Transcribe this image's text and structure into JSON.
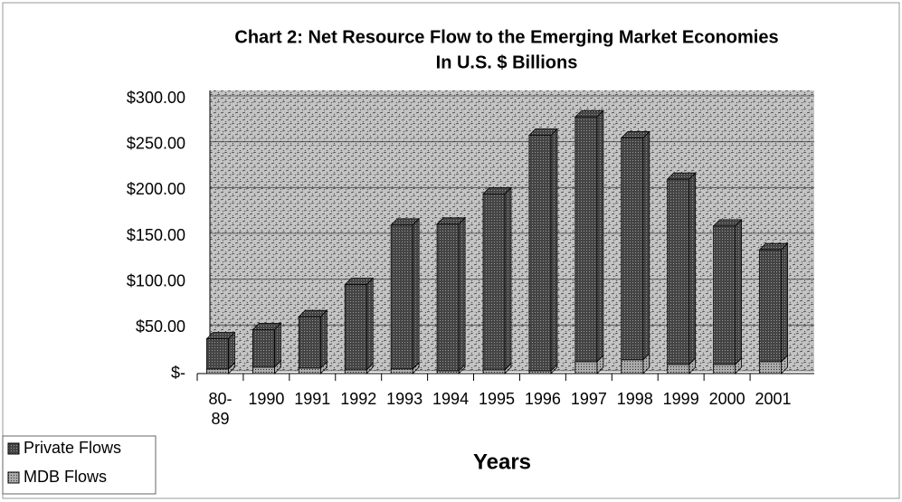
{
  "chart_data": {
    "type": "bar",
    "stacked": true,
    "title": "Chart 2: Net Resource Flow to the Emerging Market Economies",
    "subtitle": "In U.S. $ Billions",
    "x_label": "Years",
    "categories": [
      "80-89",
      "1990",
      "1991",
      "1992",
      "1993",
      "1994",
      "1995",
      "1996",
      "1997",
      "1998",
      "1999",
      "2000",
      "2001"
    ],
    "series": [
      {
        "name": "Private Flows",
        "color": "#555555",
        "values": [
          33,
          41,
          56,
          93,
          157,
          160,
          192,
          257,
          267,
          242,
          202,
          151,
          122
        ]
      },
      {
        "name": "MDB Flows",
        "color": "#a8a8a8",
        "values": [
          5,
          7,
          6,
          4,
          5,
          3,
          4,
          3,
          13,
          15,
          10,
          10,
          13
        ]
      }
    ],
    "ylim": [
      0,
      300
    ],
    "yticks": [
      {
        "value": 0,
        "label": "$-"
      },
      {
        "value": 50,
        "label": "$50.00"
      },
      {
        "value": 100,
        "label": "$100.00"
      },
      {
        "value": 150,
        "label": "$150.00"
      },
      {
        "value": 200,
        "label": "$200.00"
      },
      {
        "value": 250,
        "label": "$250.00"
      },
      {
        "value": 300,
        "label": "$300.00"
      }
    ],
    "grid": true,
    "legend": "lower left"
  }
}
